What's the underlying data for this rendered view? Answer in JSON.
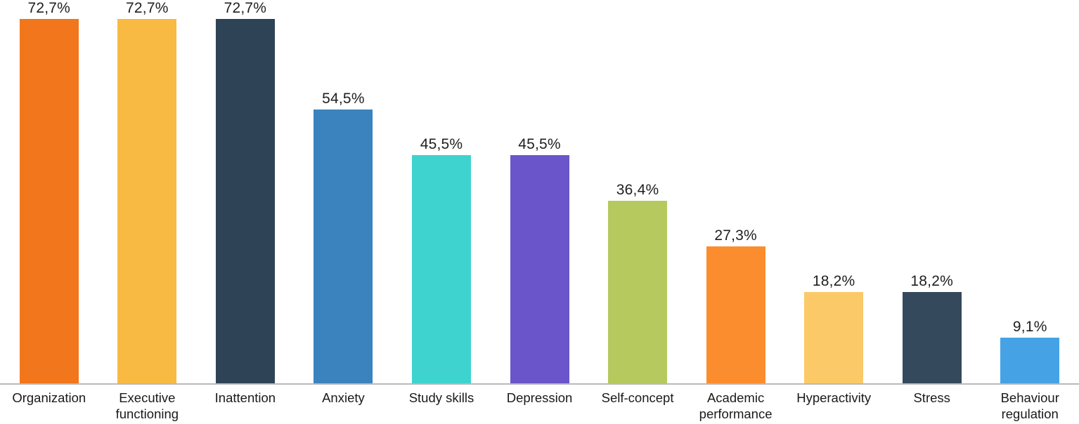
{
  "chart_data": {
    "type": "bar",
    "title": "",
    "xlabel": "",
    "ylabel": "",
    "ylim": [
      0,
      76.6
    ],
    "grid": false,
    "legend": false,
    "decimal_separator": ",",
    "axis_line_color": "#b9b9b9",
    "value_label_color": "#1f1f1f",
    "category_label_color": "#1a1a1a",
    "categories": [
      "Organization",
      "Executive functioning",
      "Inattention",
      "Anxiety",
      "Study skills",
      "Depression",
      "Self-concept",
      "Academic performance",
      "Hyperactivity",
      "Stress",
      "Behaviour regulation"
    ],
    "values": [
      72.7,
      72.7,
      72.7,
      54.5,
      45.5,
      45.5,
      36.4,
      27.3,
      18.2,
      18.2,
      9.1
    ],
    "value_labels": [
      "72,7%",
      "72,7%",
      "72,7%",
      "54,5%",
      "45,5%",
      "45,5%",
      "36,4%",
      "27,3%",
      "18,2%",
      "18,2%",
      "9,1%"
    ],
    "bar_colors": [
      "#F2761B",
      "#F8BA42",
      "#2E4356",
      "#3A83BE",
      "#3ED3CE",
      "#6A55CA",
      "#B5C95F",
      "#FB8D2E",
      "#FBC968",
      "#35495C",
      "#45A2E5"
    ]
  }
}
